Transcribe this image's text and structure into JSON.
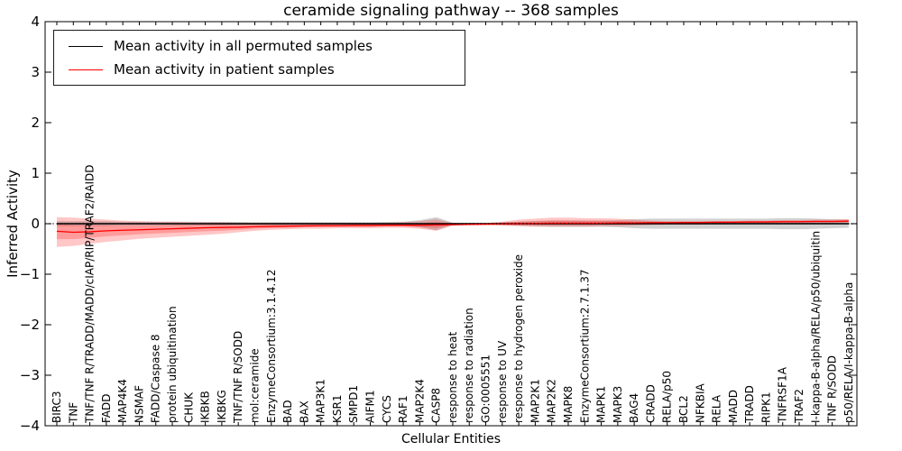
{
  "title": "ceramide signaling pathway -- 368 samples",
  "axes": {
    "x_label": "Cellular Entities",
    "y_label": "Inferred Activity",
    "y_tick_values": [
      4,
      3,
      2,
      1,
      0,
      -1,
      -2,
      -3,
      -4
    ],
    "y_tick_labels": [
      "4",
      "3",
      "2",
      "1",
      "0",
      "−1",
      "−2",
      "−3",
      "−4"
    ]
  },
  "legend": {
    "items": [
      {
        "label": "Mean activity in all permuted samples",
        "color": "#000000"
      },
      {
        "label": "Mean activity in patient samples",
        "color": "#ff0000"
      }
    ]
  },
  "chart_data": {
    "type": "line",
    "title": "ceramide signaling pathway -- 368 samples",
    "xlabel": "Cellular Entities",
    "ylabel": "Inferred Activity",
    "ylim": [
      -4,
      4
    ],
    "x_tick_rotation": 90,
    "grid": false,
    "legend_position": "upper left",
    "zero_line": {
      "y": 0,
      "style": "dotted",
      "color": "#000000"
    },
    "categories": [
      "BIRC3",
      "TNF",
      "TNF/TNF R/TRADD/MADD/cIAP/RIP/TRAF2/RAIDD",
      "FADD",
      "MAP4K4",
      "NSMAF",
      "FADD/Caspase 8",
      "protein ubiquitination",
      "CHUK",
      "IKBKB",
      "IKBKG",
      "TNF/TNF R/SODD",
      "mol:ceramide",
      "EnzymeConsortium:3.1.4.12",
      "BAD",
      "BAX",
      "MAP3K1",
      "KSR1",
      "SMPD1",
      "AIFM1",
      "CYCS",
      "RAF1",
      "MAP2K4",
      "CASP8",
      "response to heat",
      "response to radiation",
      "GO:0005551",
      "response to UV",
      "response to hydrogen peroxide",
      "MAP2K1",
      "MAP2K2",
      "MAPK8",
      "EnzymeConsortium:2.7.1.37",
      "MAPK1",
      "MAPK3",
      "BAG4",
      "CRADD",
      "RELA/p50",
      "BCL2",
      "NFKBIA",
      "RELA",
      "MADD",
      "TRADD",
      "RIPK1",
      "TNFRSF1A",
      "TRAF2",
      "I-kappa-B-alpha/RELA/p50/ubiquitin",
      "TNF R/SODD",
      "p50/RELA/I-kappa-B-alpha"
    ],
    "series": [
      {
        "name": "Mean activity in all permuted samples",
        "color": "#000000",
        "values": [
          0,
          0,
          0,
          0,
          0,
          0,
          0,
          0,
          0,
          0,
          0,
          0,
          0,
          0,
          0,
          0,
          0,
          0,
          0,
          0,
          0,
          0,
          0,
          0,
          0,
          0,
          0,
          0,
          0,
          0,
          0,
          0,
          0,
          0,
          0,
          0,
          0,
          0,
          0,
          0,
          0,
          0,
          0,
          0,
          0,
          0,
          0,
          0,
          0
        ]
      },
      {
        "name": "Mean activity in patient samples",
        "color": "#ff0000",
        "values": [
          -0.15,
          -0.17,
          -0.16,
          -0.14,
          -0.13,
          -0.12,
          -0.11,
          -0.1,
          -0.09,
          -0.08,
          -0.075,
          -0.07,
          -0.06,
          -0.055,
          -0.05,
          -0.045,
          -0.04,
          -0.04,
          -0.035,
          -0.035,
          -0.03,
          -0.03,
          -0.03,
          -0.025,
          -0.02,
          -0.015,
          -0.01,
          -0.005,
          0,
          0.005,
          0.01,
          0.01,
          0.01,
          0.01,
          0.015,
          0.015,
          0.02,
          0.02,
          0.025,
          0.025,
          0.03,
          0.03,
          0.035,
          0.035,
          0.04,
          0.04,
          0.045,
          0.045,
          0.05
        ]
      }
    ],
    "bands": [
      {
        "name": "permuted-samples-band",
        "color": "#999999",
        "opacity": 0.45,
        "upper": [
          0.05,
          0.05,
          0.05,
          0.05,
          0.04,
          0.04,
          0.04,
          0.04,
          0.04,
          0.035,
          0.035,
          0.035,
          0.03,
          0.03,
          0.03,
          0.03,
          0.03,
          0.03,
          0.03,
          0.03,
          0.035,
          0.04,
          0.07,
          0.13,
          0.02,
          0.015,
          0.015,
          0.03,
          0.04,
          0.05,
          0.06,
          0.06,
          0.06,
          0.06,
          0.07,
          0.09,
          0.1,
          0.1,
          0.1,
          0.1,
          0.1,
          0.1,
          0.1,
          0.1,
          0.11,
          0.11,
          0.1,
          0.09,
          0.08
        ],
        "lower": [
          -0.05,
          -0.05,
          -0.05,
          -0.05,
          -0.04,
          -0.04,
          -0.04,
          -0.04,
          -0.04,
          -0.035,
          -0.035,
          -0.035,
          -0.03,
          -0.03,
          -0.03,
          -0.03,
          -0.03,
          -0.03,
          -0.03,
          -0.03,
          -0.035,
          -0.04,
          -0.07,
          -0.13,
          -0.02,
          -0.015,
          -0.015,
          -0.03,
          -0.04,
          -0.05,
          -0.06,
          -0.06,
          -0.06,
          -0.06,
          -0.07,
          -0.09,
          -0.1,
          -0.1,
          -0.1,
          -0.1,
          -0.1,
          -0.1,
          -0.1,
          -0.1,
          -0.11,
          -0.11,
          -0.1,
          -0.09,
          -0.08
        ]
      },
      {
        "name": "patient-samples-band",
        "color": "#ff0000",
        "opacity": 0.22,
        "upper": [
          0.13,
          0.12,
          0.1,
          0.08,
          0.06,
          0.05,
          0.04,
          0.04,
          0.03,
          0.03,
          0.03,
          0.02,
          0.02,
          0.02,
          0.02,
          0.02,
          0.02,
          0.02,
          0.02,
          0.02,
          0.02,
          0.03,
          0.05,
          0.09,
          0.01,
          0.005,
          0.01,
          0.04,
          0.08,
          0.1,
          0.12,
          0.12,
          0.11,
          0.11,
          0.1,
          0.08,
          0.06,
          0.05,
          0.05,
          0.05,
          0.05,
          0.05,
          0.06,
          0.06,
          0.07,
          0.07,
          0.08,
          0.08,
          0.09
        ],
        "lower": [
          -0.46,
          -0.44,
          -0.4,
          -0.36,
          -0.33,
          -0.3,
          -0.28,
          -0.26,
          -0.24,
          -0.22,
          -0.2,
          -0.17,
          -0.14,
          -0.12,
          -0.11,
          -0.1,
          -0.1,
          -0.09,
          -0.09,
          -0.09,
          -0.08,
          -0.08,
          -0.1,
          -0.14,
          -0.04,
          -0.03,
          -0.03,
          -0.04,
          -0.05,
          -0.06,
          -0.06,
          -0.06,
          -0.06,
          -0.05,
          -0.05,
          -0.04,
          -0.03,
          -0.02,
          -0.02,
          -0.02,
          -0.01,
          -0.01,
          -0.01,
          -0.01,
          0,
          0,
          0.01,
          0.01,
          0.02
        ]
      }
    ]
  }
}
